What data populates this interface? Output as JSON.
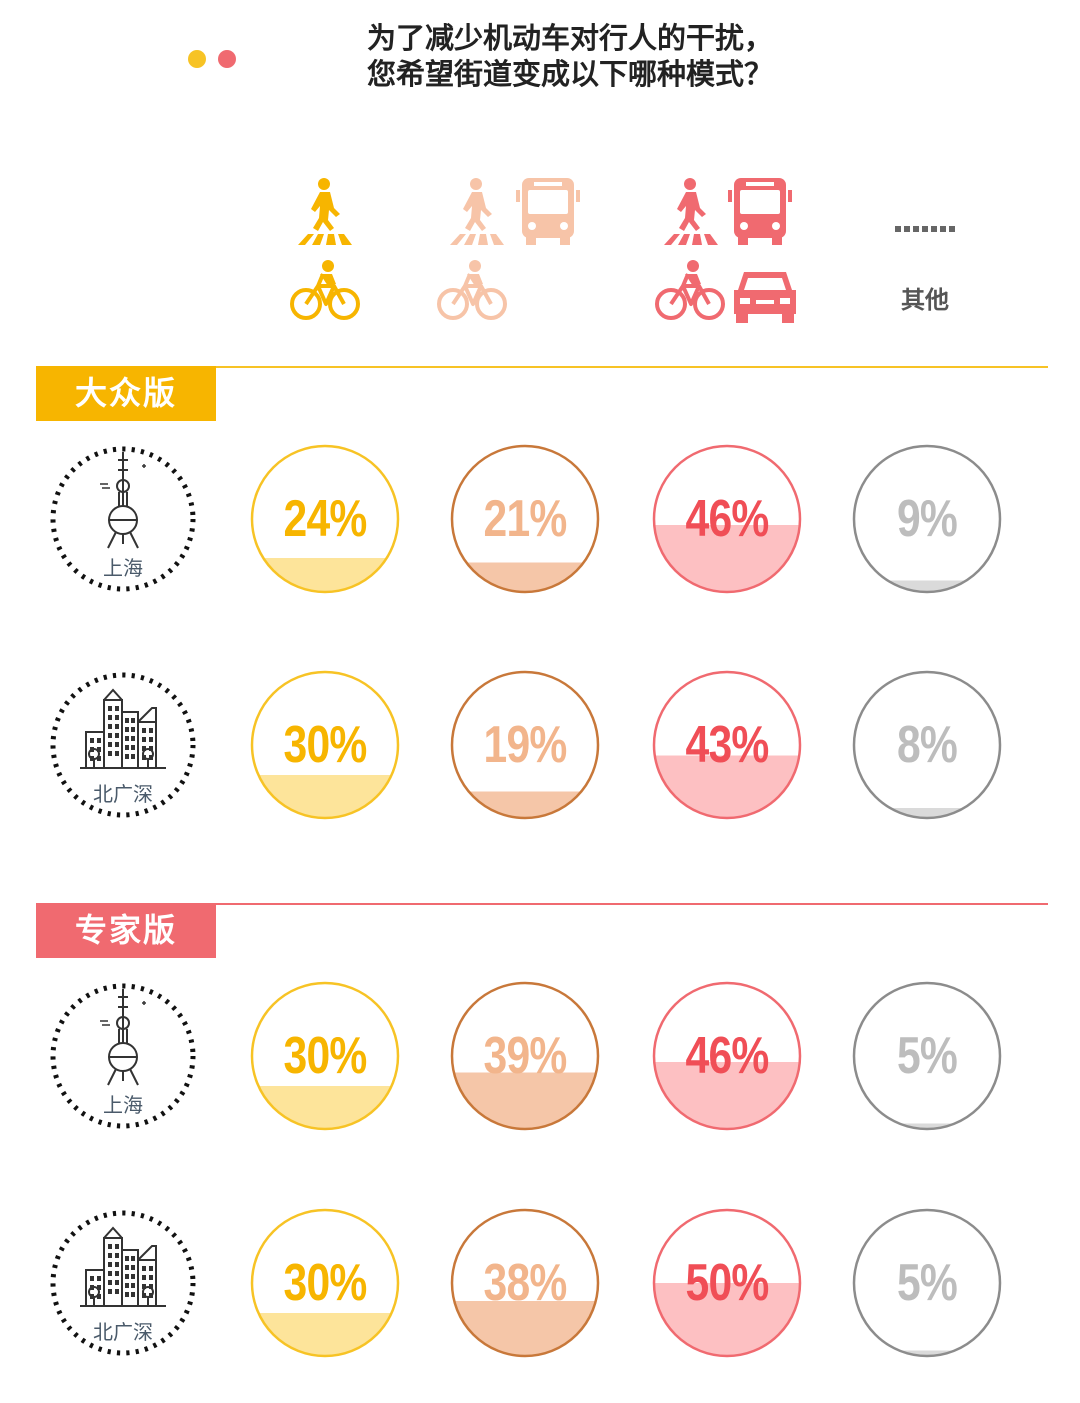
{
  "header": {
    "dot_colors": [
      "#f7c325",
      "#f06a70"
    ],
    "title_line1": "为了减少机动车对行人的干扰，",
    "title_line2": "您希望街道变成以下哪种模式？"
  },
  "legend": {
    "options": [
      {
        "id": "walk-bike",
        "icons": [
          "pedestrian-crossing-icon",
          "bicycle-icon"
        ],
        "color": "#f7b500"
      },
      {
        "id": "walk-bike-bus",
        "icons": [
          "pedestrian-crossing-icon",
          "bus-icon",
          "bicycle-icon"
        ],
        "color": "#f7c4a8"
      },
      {
        "id": "walk-bike-bus-car",
        "icons": [
          "pedestrian-crossing-icon",
          "bus-icon",
          "bicycle-icon",
          "car-icon"
        ],
        "color": "#f06a70"
      },
      {
        "id": "other",
        "icons": [
          "ellipsis-icon"
        ],
        "color": "#888888",
        "label": "其他"
      }
    ]
  },
  "sections": [
    {
      "tag": "大众版",
      "tag_color": "#f7b500",
      "line_color": "#f7c325"
    },
    {
      "tag": "专家版",
      "tag_color": "#f06a70",
      "line_color": "#f06a70"
    }
  ],
  "cities": {
    "shanghai": "上海",
    "bgs": "北广深"
  },
  "styles": [
    {
      "stroke": "#f7c325",
      "fill": "#fde49a",
      "text": "#f7b500"
    },
    {
      "stroke": "#c8783a",
      "fill": "#f5c6a8",
      "text": "#f2b58c"
    },
    {
      "stroke": "#f06a70",
      "fill": "#fdc0c2",
      "text": "#f04e56"
    },
    {
      "stroke": "#8c8c8c",
      "fill": "#dadada",
      "text": "#bdbdbd"
    }
  ],
  "chart_data": {
    "type": "table",
    "rows": [
      {
        "section": "大众版",
        "city": "上海",
        "values": [
          24,
          21,
          46,
          9
        ],
        "labels": [
          "24%",
          "21%",
          "46%",
          "9%"
        ]
      },
      {
        "section": "大众版",
        "city": "北广深",
        "values": [
          30,
          19,
          43,
          8
        ],
        "labels": [
          "30%",
          "19%",
          "43%",
          "8%"
        ]
      },
      {
        "section": "专家版",
        "city": "上海",
        "values": [
          30,
          39,
          46,
          5
        ],
        "labels": [
          "30%",
          "39%",
          "46%",
          "5%"
        ]
      },
      {
        "section": "专家版",
        "city": "北广深",
        "values": [
          30,
          38,
          50,
          5
        ],
        "labels": [
          "30%",
          "38%",
          "50%",
          "5%"
        ]
      }
    ]
  }
}
